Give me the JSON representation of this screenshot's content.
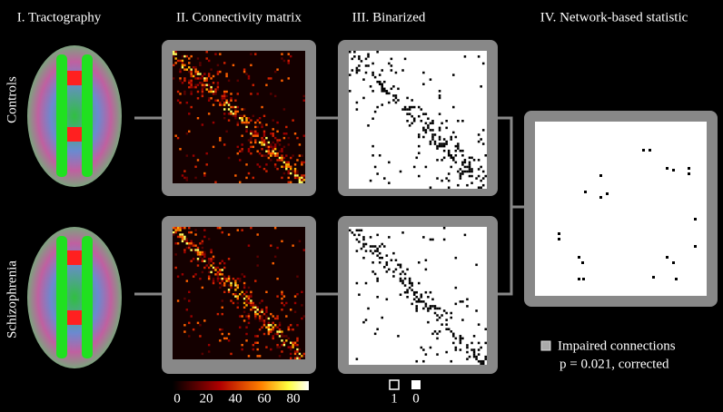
{
  "columns": [
    "I. Tractography",
    "II. Connectivity matrix",
    "III. Binarized",
    "IV. Network-based statistic"
  ],
  "rows": [
    "Controls",
    "Schizophrenia"
  ],
  "colorbar": {
    "ticks": [
      0,
      20,
      40,
      60,
      80
    ]
  },
  "binary_legend": {
    "labels": [
      "1",
      "0"
    ]
  },
  "nbs_legend": {
    "label": "Impaired connections",
    "note": "p = 0.021, corrected"
  }
}
